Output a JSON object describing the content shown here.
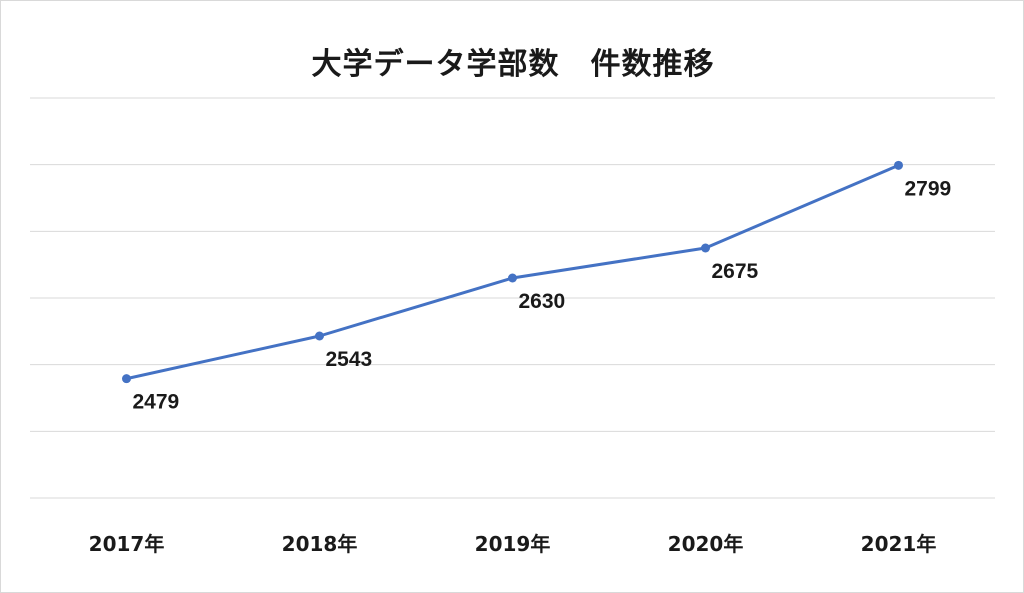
{
  "chart_data": {
    "type": "line",
    "title": "大学データ学部数　件数推移",
    "categories": [
      "2017年",
      "2018年",
      "2019年",
      "2020年",
      "2021年"
    ],
    "series": [
      {
        "values": [
          2479,
          2543,
          2630,
          2675,
          2799
        ]
      }
    ],
    "data_labels": [
      "2479",
      "2543",
      "2630",
      "2675",
      "2799"
    ],
    "ylim": [
      2300,
      2900
    ],
    "grid": true,
    "legend": "none",
    "xlabel": "",
    "ylabel": "",
    "line_color": "#4472c4"
  }
}
